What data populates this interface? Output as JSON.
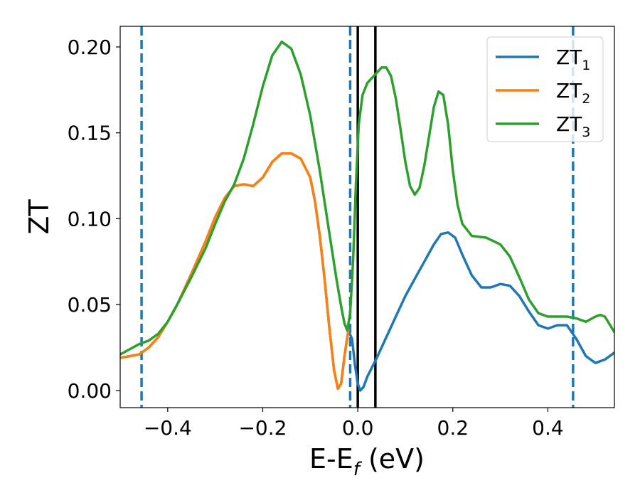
{
  "chart_data": {
    "type": "line",
    "xlabel_main": "E-E",
    "xlabel_sub": "f",
    "xlabel_unit": " (eV)",
    "ylabel": "ZT",
    "xlim": [
      -0.5,
      0.54
    ],
    "ylim": [
      -0.01,
      0.212
    ],
    "xticks": [
      {
        "value": -0.4,
        "label": "−0.4"
      },
      {
        "value": -0.2,
        "label": "−0.2"
      },
      {
        "value": 0.0,
        "label": "0.0"
      },
      {
        "value": 0.2,
        "label": "0.2"
      },
      {
        "value": 0.4,
        "label": "0.4"
      }
    ],
    "yticks": [
      {
        "value": 0.0,
        "label": "0.00"
      },
      {
        "value": 0.05,
        "label": "0.05"
      },
      {
        "value": 0.1,
        "label": "0.10"
      },
      {
        "value": 0.15,
        "label": "0.15"
      },
      {
        "value": 0.2,
        "label": "0.20"
      }
    ],
    "grid": false,
    "legend_position": "top-right",
    "vlines_dashed": [
      -0.455,
      -0.016,
      0.453
    ],
    "vlines_solid": [
      0.0,
      0.037
    ],
    "series": [
      {
        "name": "ZT",
        "sub": "1",
        "color": "#1f77b4",
        "points": [
          [
            -0.5,
            0.019
          ],
          [
            -0.46,
            0.021
          ],
          [
            -0.44,
            0.025
          ],
          [
            -0.42,
            0.031
          ],
          [
            -0.4,
            0.04
          ],
          [
            -0.38,
            0.05
          ],
          [
            -0.35,
            0.068
          ],
          [
            -0.32,
            0.087
          ],
          [
            -0.3,
            0.101
          ],
          [
            -0.28,
            0.112
          ],
          [
            -0.26,
            0.119
          ],
          [
            -0.24,
            0.12
          ],
          [
            -0.22,
            0.119
          ],
          [
            -0.2,
            0.124
          ],
          [
            -0.18,
            0.133
          ],
          [
            -0.16,
            0.138
          ],
          [
            -0.14,
            0.138
          ],
          [
            -0.12,
            0.135
          ],
          [
            -0.1,
            0.124
          ],
          [
            -0.09,
            0.11
          ],
          [
            -0.08,
            0.09
          ],
          [
            -0.07,
            0.065
          ],
          [
            -0.06,
            0.037
          ],
          [
            -0.05,
            0.012
          ],
          [
            -0.042,
            0.001
          ],
          [
            -0.035,
            0.004
          ],
          [
            -0.028,
            0.02
          ],
          [
            -0.02,
            0.035
          ],
          [
            -0.012,
            0.03
          ],
          [
            -0.006,
            0.015
          ],
          [
            0.0,
            0.004
          ],
          [
            0.005,
            0.0
          ],
          [
            0.012,
            0.002
          ],
          [
            0.02,
            0.008
          ],
          [
            0.04,
            0.019
          ],
          [
            0.06,
            0.031
          ],
          [
            0.08,
            0.043
          ],
          [
            0.1,
            0.055
          ],
          [
            0.12,
            0.065
          ],
          [
            0.14,
            0.075
          ],
          [
            0.16,
            0.085
          ],
          [
            0.175,
            0.091
          ],
          [
            0.19,
            0.092
          ],
          [
            0.205,
            0.089
          ],
          [
            0.22,
            0.079
          ],
          [
            0.24,
            0.067
          ],
          [
            0.26,
            0.06
          ],
          [
            0.28,
            0.06
          ],
          [
            0.3,
            0.062
          ],
          [
            0.32,
            0.061
          ],
          [
            0.34,
            0.055
          ],
          [
            0.36,
            0.046
          ],
          [
            0.38,
            0.038
          ],
          [
            0.4,
            0.036
          ],
          [
            0.42,
            0.038
          ],
          [
            0.44,
            0.038
          ],
          [
            0.46,
            0.03
          ],
          [
            0.48,
            0.02
          ],
          [
            0.5,
            0.016
          ],
          [
            0.52,
            0.018
          ],
          [
            0.54,
            0.022
          ]
        ]
      },
      {
        "name": "ZT",
        "sub": "2",
        "color": "#ff7f0e",
        "points": [
          [
            -0.5,
            0.019
          ],
          [
            -0.46,
            0.021
          ],
          [
            -0.44,
            0.025
          ],
          [
            -0.42,
            0.031
          ],
          [
            -0.4,
            0.04
          ],
          [
            -0.38,
            0.05
          ],
          [
            -0.35,
            0.068
          ],
          [
            -0.32,
            0.087
          ],
          [
            -0.3,
            0.101
          ],
          [
            -0.28,
            0.112
          ],
          [
            -0.26,
            0.119
          ],
          [
            -0.24,
            0.12
          ],
          [
            -0.22,
            0.119
          ],
          [
            -0.2,
            0.124
          ],
          [
            -0.18,
            0.133
          ],
          [
            -0.16,
            0.138
          ],
          [
            -0.14,
            0.138
          ],
          [
            -0.12,
            0.135
          ],
          [
            -0.1,
            0.124
          ],
          [
            -0.09,
            0.11
          ],
          [
            -0.08,
            0.09
          ],
          [
            -0.07,
            0.065
          ],
          [
            -0.06,
            0.037
          ],
          [
            -0.05,
            0.012
          ],
          [
            -0.042,
            0.001
          ],
          [
            -0.035,
            0.004
          ],
          [
            -0.028,
            0.02
          ],
          [
            -0.02,
            0.035
          ]
        ]
      },
      {
        "name": "ZT",
        "sub": "3",
        "color": "#2ca02c",
        "points": [
          [
            -0.5,
            0.021
          ],
          [
            -0.48,
            0.024
          ],
          [
            -0.46,
            0.027
          ],
          [
            -0.44,
            0.029
          ],
          [
            -0.42,
            0.033
          ],
          [
            -0.4,
            0.04
          ],
          [
            -0.38,
            0.05
          ],
          [
            -0.35,
            0.066
          ],
          [
            -0.32,
            0.083
          ],
          [
            -0.3,
            0.097
          ],
          [
            -0.28,
            0.11
          ],
          [
            -0.26,
            0.12
          ],
          [
            -0.24,
            0.135
          ],
          [
            -0.22,
            0.155
          ],
          [
            -0.2,
            0.177
          ],
          [
            -0.18,
            0.195
          ],
          [
            -0.16,
            0.203
          ],
          [
            -0.14,
            0.199
          ],
          [
            -0.12,
            0.184
          ],
          [
            -0.1,
            0.16
          ],
          [
            -0.08,
            0.128
          ],
          [
            -0.06,
            0.092
          ],
          [
            -0.045,
            0.065
          ],
          [
            -0.035,
            0.049
          ],
          [
            -0.028,
            0.039
          ],
          [
            -0.022,
            0.035
          ],
          [
            -0.016,
            0.045
          ],
          [
            -0.01,
            0.075
          ],
          [
            -0.004,
            0.12
          ],
          [
            0.002,
            0.155
          ],
          [
            0.01,
            0.172
          ],
          [
            0.02,
            0.179
          ],
          [
            0.03,
            0.182
          ],
          [
            0.04,
            0.185
          ],
          [
            0.05,
            0.188
          ],
          [
            0.06,
            0.188
          ],
          [
            0.07,
            0.183
          ],
          [
            0.08,
            0.17
          ],
          [
            0.09,
            0.152
          ],
          [
            0.1,
            0.133
          ],
          [
            0.11,
            0.119
          ],
          [
            0.12,
            0.114
          ],
          [
            0.13,
            0.118
          ],
          [
            0.14,
            0.131
          ],
          [
            0.15,
            0.148
          ],
          [
            0.16,
            0.165
          ],
          [
            0.17,
            0.174
          ],
          [
            0.18,
            0.172
          ],
          [
            0.19,
            0.155
          ],
          [
            0.2,
            0.128
          ],
          [
            0.21,
            0.108
          ],
          [
            0.22,
            0.097
          ],
          [
            0.24,
            0.09
          ],
          [
            0.27,
            0.089
          ],
          [
            0.3,
            0.085
          ],
          [
            0.32,
            0.078
          ],
          [
            0.34,
            0.066
          ],
          [
            0.36,
            0.053
          ],
          [
            0.38,
            0.045
          ],
          [
            0.4,
            0.043
          ],
          [
            0.42,
            0.043
          ],
          [
            0.44,
            0.043
          ],
          [
            0.46,
            0.042
          ],
          [
            0.48,
            0.04
          ],
          [
            0.5,
            0.043
          ],
          [
            0.51,
            0.044
          ],
          [
            0.52,
            0.043
          ],
          [
            0.54,
            0.034
          ]
        ]
      }
    ]
  }
}
